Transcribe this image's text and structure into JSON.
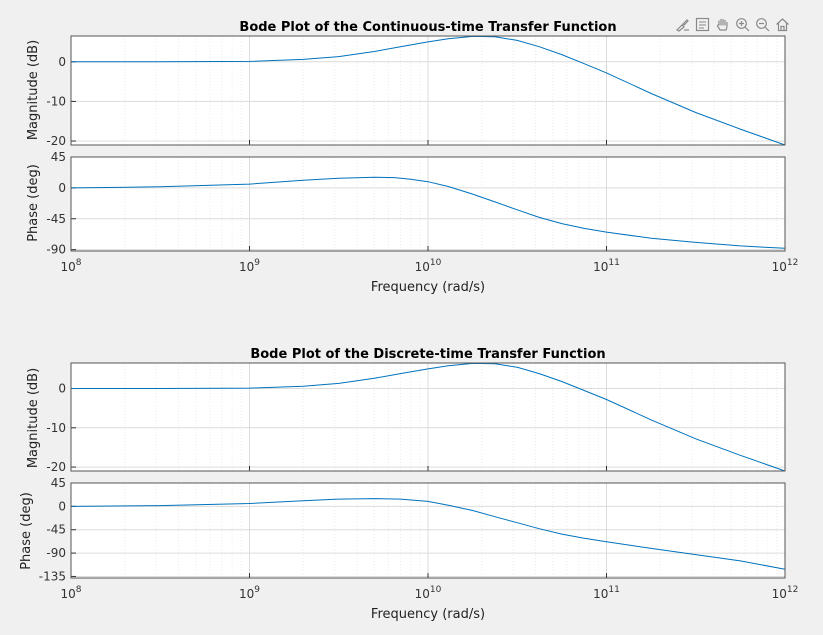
{
  "toolbar": {
    "icons": [
      "brush-icon",
      "datatip-icon",
      "pan-hand-icon",
      "zoom-in-icon",
      "zoom-out-icon",
      "home-icon"
    ]
  },
  "colors": {
    "line": "#0072bd",
    "axes_bg": "#ffffff",
    "figure_bg": "#f0f0f0",
    "grid_major": "#dcdcdc",
    "grid_minor": "#ececec"
  },
  "chart_data": [
    {
      "type": "line",
      "title": "Bode Plot of the Continuous-time Transfer Function",
      "xlabel": "Frequency  (rad/s)",
      "xscale": "log",
      "xlim": [
        100000000,
        1000000000000
      ],
      "xticks": [
        100000000,
        1000000000,
        10000000000,
        100000000000,
        1000000000000
      ],
      "xtick_labels": [
        {
          "base": "10",
          "exp": "8"
        },
        {
          "base": "10",
          "exp": "9"
        },
        {
          "base": "10",
          "exp": "10"
        },
        {
          "base": "10",
          "exp": "11"
        },
        {
          "base": "10",
          "exp": "12"
        }
      ],
      "grid": true,
      "magnitude": {
        "ylabel": "Magnitude (dB)",
        "ylim": [
          -21,
          6.5
        ],
        "yticks": [
          0,
          -10,
          -20
        ],
        "ytick_labels": [
          "0",
          "-10",
          "-20"
        ],
        "x": [
          100000000,
          316000000,
          1000000000,
          2000000000,
          3160000000,
          5000000000,
          7000000000,
          10000000000,
          13000000000,
          17800000000,
          23700000000,
          31600000000,
          42000000000,
          56200000000,
          75000000000,
          100000000000,
          178000000000,
          316000000000,
          562000000000,
          1000000000000
        ],
        "y": [
          0,
          0,
          0.1,
          0.6,
          1.3,
          2.6,
          3.8,
          5.0,
          5.8,
          6.4,
          6.3,
          5.4,
          3.8,
          1.8,
          -0.5,
          -2.8,
          -8.0,
          -12.8,
          -17.0,
          -21.0
        ]
      },
      "phase": {
        "ylabel": "Phase (deg)",
        "ylim": [
          -92,
          45
        ],
        "yticks": [
          45,
          0,
          -45,
          -90
        ],
        "ytick_labels": [
          "45",
          "0",
          "-45",
          "-90"
        ],
        "x": [
          100000000,
          316000000,
          1000000000,
          2000000000,
          3160000000,
          5000000000,
          6500000000,
          8000000000,
          10000000000,
          13000000000,
          17800000000,
          23700000000,
          31600000000,
          42000000000,
          56200000000,
          75000000000,
          100000000000,
          178000000000,
          316000000000,
          562000000000,
          1000000000000
        ],
        "y": [
          0,
          1.5,
          5.5,
          11.0,
          14.0,
          15.5,
          15.0,
          12.5,
          9.0,
          2.0,
          -9.0,
          -20.5,
          -32.0,
          -43.0,
          -52.0,
          -59.0,
          -64.5,
          -73.5,
          -79.5,
          -84.5,
          -88.0
        ]
      }
    },
    {
      "type": "line",
      "title": "Bode Plot of the Discrete-time Transfer Function",
      "xlabel": "Frequency  (rad/s)",
      "xscale": "log",
      "xlim": [
        100000000,
        1000000000000
      ],
      "xticks": [
        100000000,
        1000000000,
        10000000000,
        100000000000,
        1000000000000
      ],
      "xtick_labels": [
        {
          "base": "10",
          "exp": "8"
        },
        {
          "base": "10",
          "exp": "9"
        },
        {
          "base": "10",
          "exp": "10"
        },
        {
          "base": "10",
          "exp": "11"
        },
        {
          "base": "10",
          "exp": "12"
        }
      ],
      "grid": true,
      "magnitude": {
        "ylabel": "Magnitude (dB)",
        "ylim": [
          -21,
          6.5
        ],
        "yticks": [
          0,
          -10,
          -20
        ],
        "ytick_labels": [
          "0",
          "-10",
          "-20"
        ],
        "x": [
          100000000,
          316000000,
          1000000000,
          2000000000,
          3160000000,
          5000000000,
          7000000000,
          10000000000,
          13000000000,
          17800000000,
          23700000000,
          31600000000,
          42000000000,
          56200000000,
          75000000000,
          100000000000,
          178000000000,
          316000000000,
          562000000000,
          1000000000000
        ],
        "y": [
          0,
          0,
          0.1,
          0.6,
          1.3,
          2.6,
          3.8,
          5.0,
          5.8,
          6.4,
          6.3,
          5.4,
          3.8,
          1.8,
          -0.5,
          -2.8,
          -8.0,
          -12.8,
          -17.0,
          -21.0
        ]
      },
      "phase": {
        "ylabel": "Phase (deg)",
        "ylim": [
          -138,
          45
        ],
        "yticks": [
          45,
          0,
          -45,
          -90,
          -135
        ],
        "ytick_labels": [
          "45",
          "0",
          "-45",
          "-90",
          "-135"
        ],
        "x": [
          100000000,
          316000000,
          1000000000,
          2000000000,
          3160000000,
          5000000000,
          7000000000,
          10000000000,
          13000000000,
          17800000000,
          23700000000,
          31600000000,
          42000000000,
          56200000000,
          75000000000,
          100000000000,
          178000000000,
          316000000000,
          562000000000,
          1000000000000
        ],
        "y": [
          0,
          1.5,
          5.5,
          11.0,
          14.0,
          15.0,
          14.0,
          9.5,
          2.0,
          -8.0,
          -20.0,
          -31.5,
          -43.0,
          -53.5,
          -61.5,
          -68.0,
          -81.0,
          -93.0,
          -105.0,
          -121.0
        ]
      }
    }
  ]
}
